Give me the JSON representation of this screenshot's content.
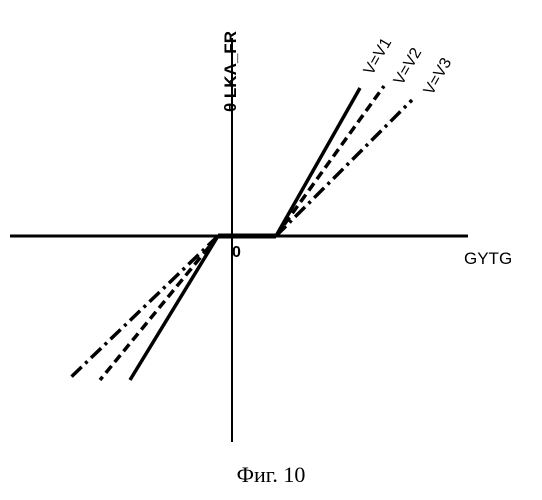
{
  "y_axis_label": "θ LKA_FR",
  "x_axis_label": "GYTG",
  "origin_label": "0",
  "caption": "Фиг. 10",
  "curves": [
    {
      "label": "V=V1",
      "style": "solid"
    },
    {
      "label": "V=V2",
      "style": "dashed"
    },
    {
      "label": "V=V3",
      "style": "dash-dot"
    }
  ]
}
